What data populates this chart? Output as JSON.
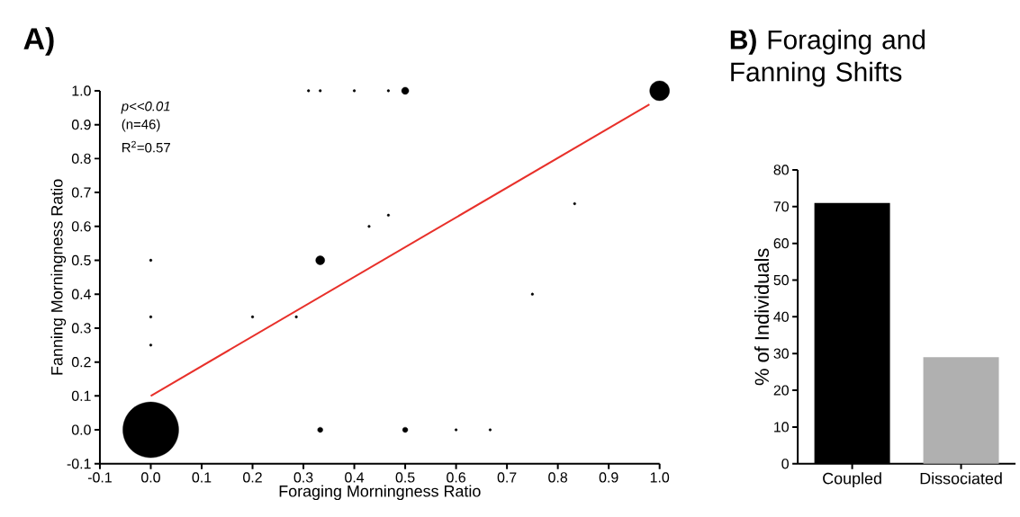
{
  "chart_data": [
    {
      "type": "bubble",
      "title": "A)",
      "xlabel": "Foraging Morningness Ratio",
      "ylabel": "Fanning Morningness Ratio",
      "annotations": [
        "p<<0.01",
        "(n=46)",
        "R$^{2}$=0.57"
      ],
      "xlim": [
        -0.1,
        1.0
      ],
      "ylim": [
        -0.1,
        1.0
      ],
      "xticks": [
        -0.1,
        {
          "value": 0,
          "label": "0.0"
        },
        0.1,
        0.2,
        0.3,
        0.4,
        0.5,
        0.6,
        0.7,
        0.8,
        0.9,
        {
          "value": 1,
          "label": "1.0"
        }
      ],
      "yticks": [
        -0.1,
        {
          "value": 0,
          "label": "0.0"
        },
        0.1,
        0.2,
        0.3,
        0.4,
        0.5,
        0.6,
        0.7,
        0.8,
        0.9,
        {
          "value": 1,
          "label": "1.0"
        }
      ],
      "series": [
        {
          "type": "bubble",
          "color": "#000000",
          "x": [
            0.31,
            0.333,
            0.4,
            0.467,
            0.5,
            1,
            0.833,
            0.429,
            0.467,
            0,
            0.333,
            0,
            0.2,
            0.286,
            0.75,
            0,
            0,
            0.333,
            0.5,
            0.6,
            0.667
          ],
          "values": [
            1,
            1,
            1,
            1,
            1,
            1,
            0.667,
            0.6,
            0.633,
            0.5,
            0.5,
            0.333,
            0.333,
            0.333,
            0.4,
            0.25,
            0,
            0,
            0,
            0,
            0
          ],
          "sizes": [
            0.002,
            0.002,
            0.002,
            0.002,
            0.017,
            0.126,
            0.002,
            0.002,
            0.002,
            0.002,
            0.026,
            0.002,
            0.002,
            0.002,
            0.002,
            0.002,
            1,
            0.009,
            0.009,
            0.002,
            0.002
          ]
        },
        {
          "type": "line",
          "color": "#e8302a",
          "x": [
            0,
            0.98
          ],
          "values": [
            0.1,
            0.96
          ]
        }
      ]
    },
    {
      "type": "bar",
      "title": "**B)** Foraging and Fanning Shifts",
      "ylabel": "% of Individuals",
      "categories": [
        "Coupled",
        "Dissociated"
      ],
      "values": [
        71,
        29
      ],
      "colors": [
        "#000000",
        "#b0b0b0"
      ],
      "ylim": [
        0,
        80
      ],
      "yticks": [
        0,
        10,
        20,
        30,
        40,
        50,
        60,
        70,
        80
      ]
    }
  ]
}
